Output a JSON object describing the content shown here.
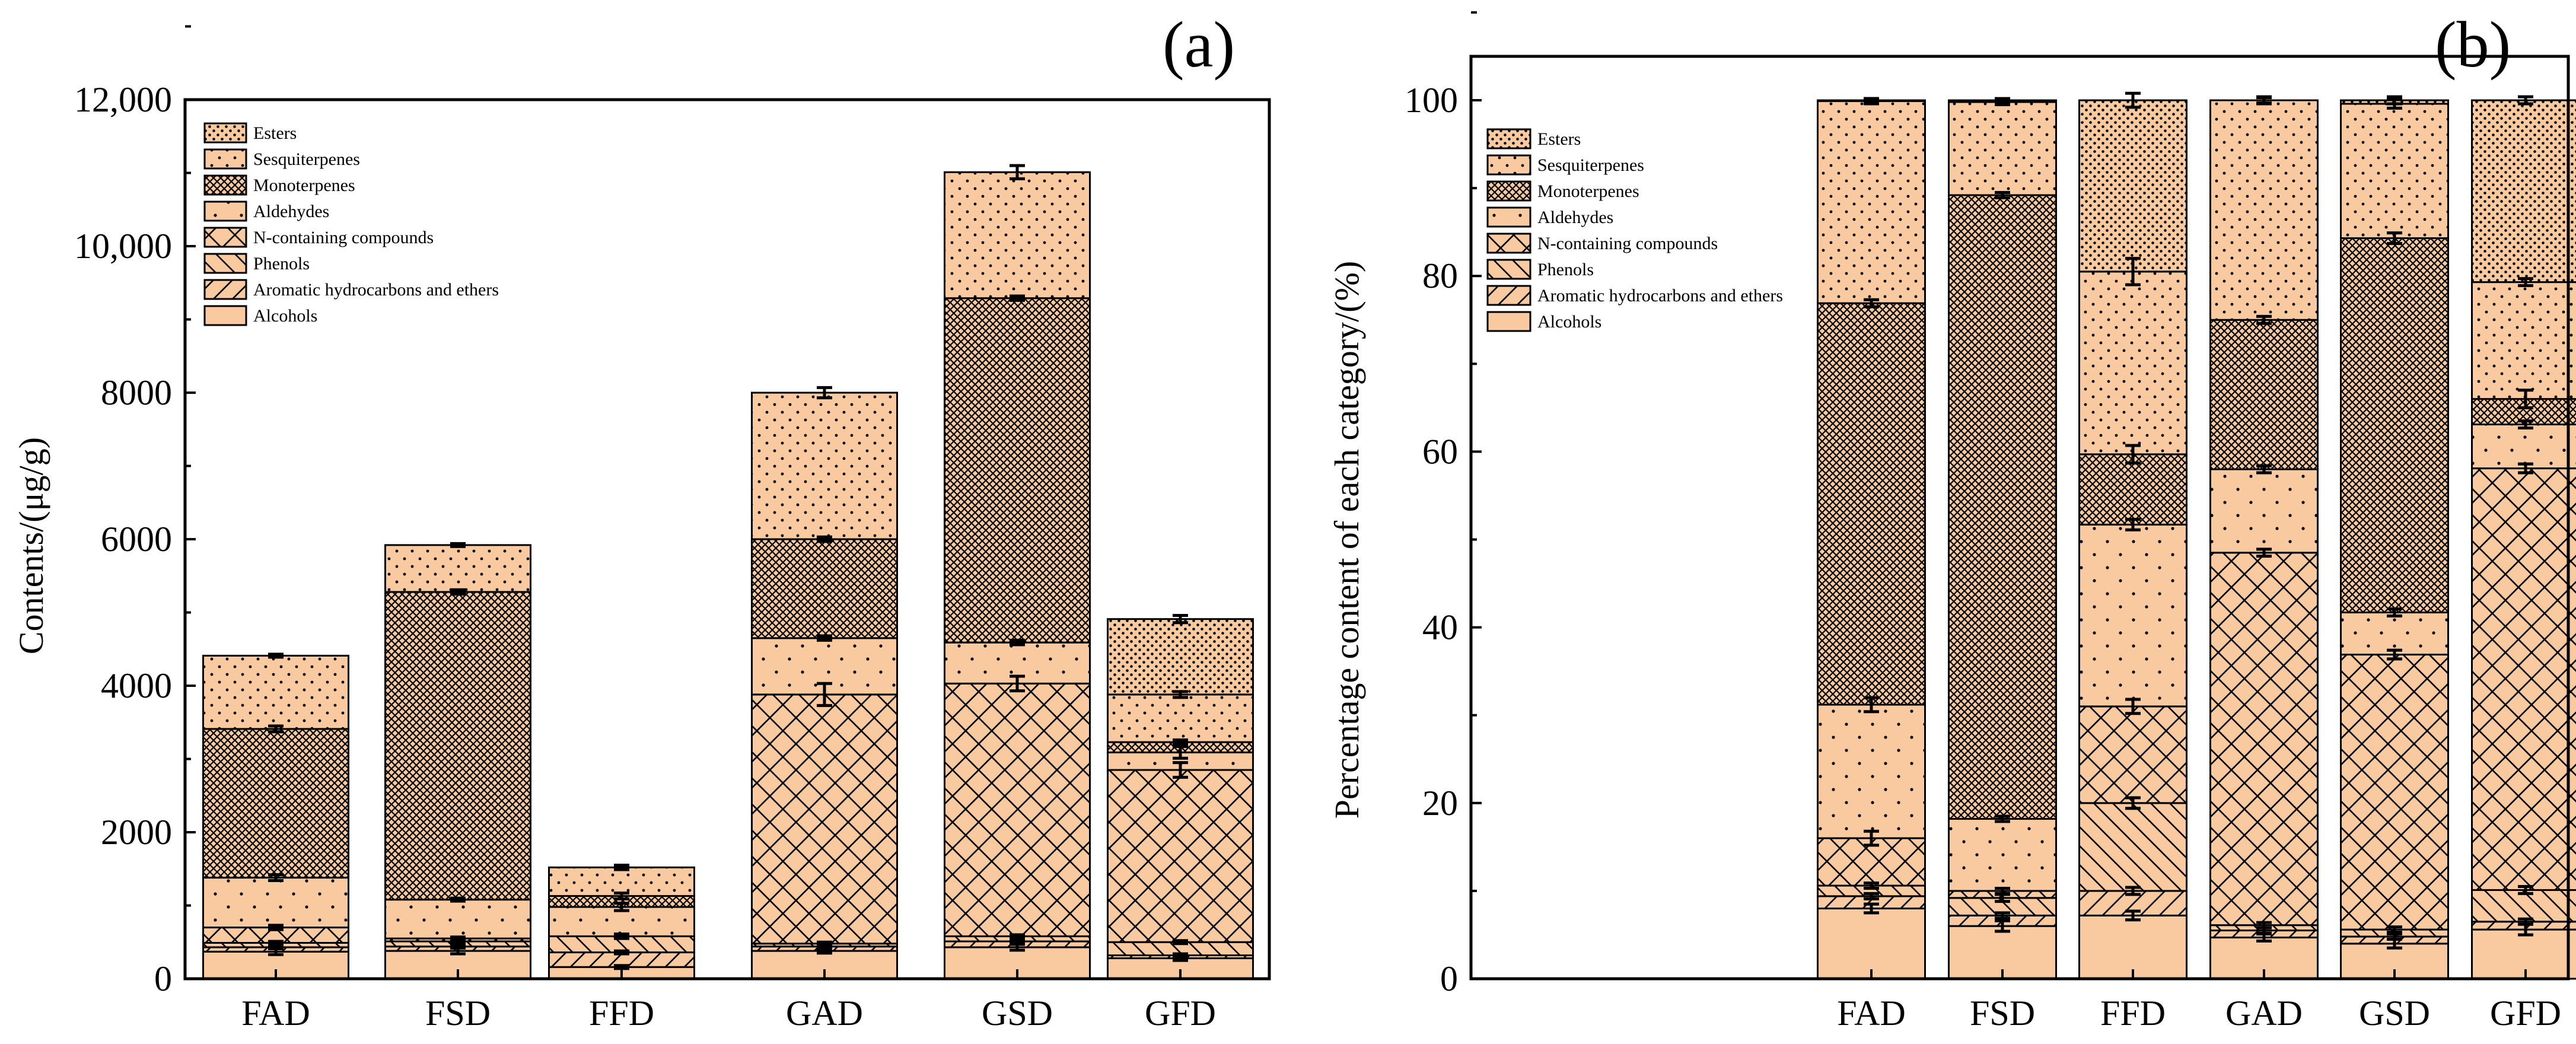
{
  "chart_data": [
    {
      "type": "bar",
      "stacked": true,
      "panel_label": "(a)",
      "title": "",
      "xlabel": "",
      "ylabel": "Contents/(μg/g)",
      "ylim": [
        0,
        12000
      ],
      "yticks": [
        0,
        2000,
        4000,
        6000,
        8000,
        10000,
        12000
      ],
      "ytick_labels": [
        "0",
        "2000",
        "4000",
        "6000",
        "8000",
        "10,000",
        "12,000"
      ],
      "legend_position": "top-left",
      "categories": [
        "FAD",
        "FSD",
        "FFD",
        "GAD",
        "GSD",
        "GFD"
      ],
      "series": [
        {
          "name": "Alcohols",
          "values": [
            370,
            380,
            160,
            380,
            430,
            280
          ],
          "errors": [
            40,
            40,
            20,
            30,
            40,
            30
          ]
        },
        {
          "name": "Aromatic hydrocarbons and ethers",
          "values": [
            60,
            60,
            200,
            60,
            80,
            40
          ],
          "errors": [
            20,
            20,
            20,
            20,
            20,
            20
          ]
        },
        {
          "name": "Phenols",
          "values": [
            60,
            70,
            220,
            40,
            70,
            180
          ],
          "errors": [
            20,
            20,
            20,
            20,
            20,
            20
          ]
        },
        {
          "name": "N-containing compounds",
          "values": [
            210,
            40,
            0,
            3400,
            3450,
            2350
          ],
          "errors": [
            30,
            20,
            30,
            150,
            100,
            100
          ]
        },
        {
          "name": "Aldehydes",
          "values": [
            680,
            530,
            400,
            770,
            560,
            240
          ],
          "errors": [
            40,
            20,
            50,
            30,
            30,
            80
          ]
        },
        {
          "name": "Monoterpenes",
          "values": [
            2030,
            4200,
            150,
            1350,
            4700,
            140
          ],
          "errors": [
            40,
            30,
            40,
            30,
            30,
            30
          ]
        },
        {
          "name": "Sesquiterpenes",
          "values": [
            1000,
            640,
            390,
            2000,
            1720,
            650
          ],
          "errors": [
            20,
            20,
            30,
            70,
            90,
            40
          ]
        },
        {
          "name": "Esters",
          "values": [
            0,
            0,
            0,
            0,
            0,
            1030
          ],
          "errors": [
            0,
            0,
            30,
            0,
            0,
            50
          ]
        }
      ]
    },
    {
      "type": "bar",
      "stacked": true,
      "panel_label": "(b)",
      "title": "",
      "xlabel": "",
      "ylabel": "Percentage content of each category/(%)",
      "ylim": [
        0,
        105
      ],
      "yticks": [
        0,
        20,
        40,
        60,
        80,
        100
      ],
      "ytick_labels": [
        "0",
        "20",
        "40",
        "60",
        "80",
        "100"
      ],
      "legend_position": "top-left",
      "categories": [
        "FAD",
        "FSD",
        "FFD",
        "GAD",
        "GSD",
        "GFD"
      ],
      "series": [
        {
          "name": "Alcohols",
          "values": [
            8.0,
            6.0,
            7.2,
            4.7,
            4.0,
            5.6
          ],
          "errors": [
            0.5,
            0.6,
            0.5,
            0.4,
            0.5,
            0.6
          ]
        },
        {
          "name": "Aromatic hydrocarbons and ethers",
          "values": [
            1.4,
            1.2,
            2.8,
            0.8,
            0.8,
            0.9
          ],
          "errors": [
            0.3,
            0.3,
            0.4,
            0.3,
            0.3,
            0.3
          ]
        },
        {
          "name": "Phenols",
          "values": [
            1.2,
            2.0,
            10.0,
            0.6,
            0.8,
            3.6
          ],
          "errors": [
            0.3,
            0.4,
            0.6,
            0.3,
            0.3,
            0.4
          ]
        },
        {
          "name": "N-containing compounds",
          "values": [
            5.4,
            0.8,
            11.0,
            42.4,
            31.3,
            48.0
          ],
          "errors": [
            0.8,
            0.3,
            0.8,
            0.4,
            0.5,
            0.5
          ]
        },
        {
          "name": "Aldehydes",
          "values": [
            15.2,
            8.2,
            20.7,
            9.5,
            4.8,
            5.0
          ],
          "errors": [
            0.8,
            0.3,
            0.6,
            0.4,
            0.4,
            0.4
          ]
        },
        {
          "name": "Monoterpenes",
          "values": [
            45.7,
            71.0,
            8.0,
            17.0,
            42.6,
            2.9
          ],
          "errors": [
            0.4,
            0.3,
            1.0,
            0.4,
            0.6,
            1.0
          ]
        },
        {
          "name": "Sesquiterpenes",
          "values": [
            23.0,
            10.6,
            20.8,
            25.0,
            15.3,
            13.3
          ],
          "errors": [
            0.3,
            0.3,
            1.5,
            0.4,
            0.5,
            0.4
          ]
        },
        {
          "name": "Esters",
          "values": [
            0.1,
            0.2,
            19.5,
            0.0,
            0.4,
            20.7
          ],
          "errors": [
            0.2,
            0.2,
            0.8,
            0.3,
            0.4,
            0.4
          ]
        }
      ]
    }
  ],
  "colors": {
    "fill": "#f9c99f",
    "stroke": "#000000",
    "background": "#ffffff"
  }
}
